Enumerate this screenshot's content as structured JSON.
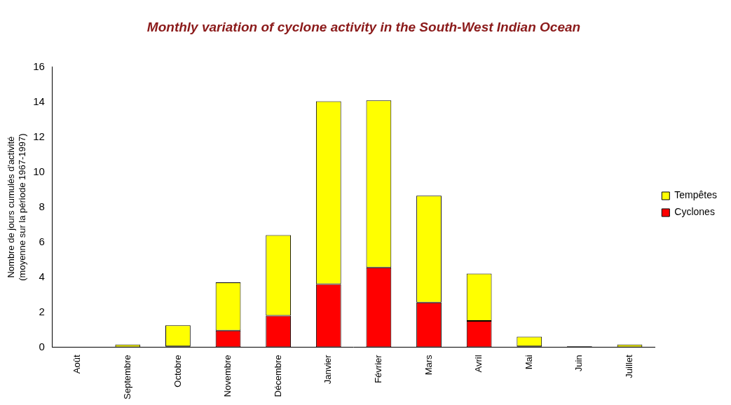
{
  "chart_data": {
    "type": "bar",
    "title": "Monthly variation of cyclone activity in the South-West Indian Ocean",
    "y_label": [
      "Nombre de jours cumulés d'activité",
      "(moyenne sur la période 1967-1997)"
    ],
    "categories": [
      "Août",
      "Septembre",
      "Octobre",
      "Novembre",
      "Décembre",
      "Janvier",
      "Février",
      "Mars",
      "Avril",
      "Mai",
      "Juin",
      "Juillet"
    ],
    "series": [
      {
        "name": "Cyclones",
        "color": "#ff0000",
        "values": [
          0,
          0,
          0.05,
          0.95,
          1.8,
          3.6,
          4.55,
          2.55,
          1.5,
          0.05,
          0.05,
          0
        ]
      },
      {
        "name": "Tempêtes",
        "color": "#ffff00",
        "values": [
          0,
          0.15,
          1.2,
          2.75,
          4.6,
          10.45,
          9.55,
          6.1,
          2.7,
          0.55,
          0,
          0.15
        ]
      }
    ],
    "ylim": [
      0,
      16
    ],
    "yticks": [
      0,
      2,
      4,
      6,
      8,
      10,
      12,
      14,
      16
    ],
    "grid": false,
    "stacked": true,
    "legend": "right"
  }
}
